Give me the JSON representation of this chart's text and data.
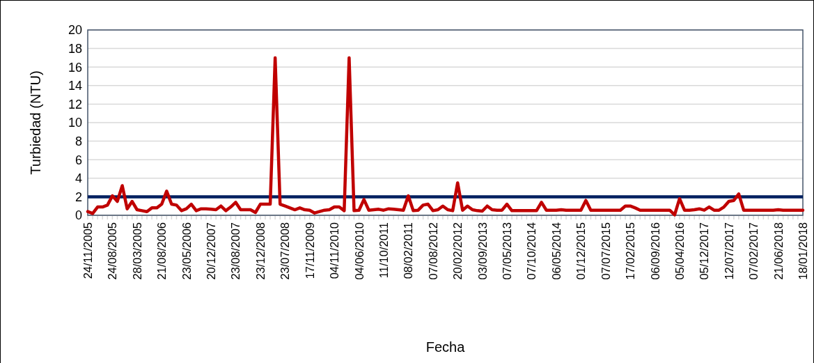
{
  "chart_data": {
    "type": "line",
    "xlabel": "Fecha",
    "ylabel": "Turbiedad (NTU)",
    "categories": [
      "24/11/2005",
      null,
      null,
      null,
      null,
      "24/08/2005",
      null,
      null,
      null,
      null,
      "28/03/2005",
      null,
      null,
      null,
      null,
      "21/08/2006",
      null,
      null,
      null,
      null,
      "23/05/2006",
      null,
      null,
      null,
      null,
      "20/12/2007",
      null,
      null,
      null,
      null,
      "23/08/2007",
      null,
      null,
      null,
      null,
      "23/12/2008",
      null,
      null,
      null,
      null,
      "23/07/2008",
      null,
      null,
      null,
      null,
      "17/11/2009",
      null,
      null,
      null,
      null,
      "04/11/2010",
      null,
      null,
      null,
      null,
      "04/06/2010",
      null,
      null,
      null,
      null,
      "11/10/2011",
      null,
      null,
      null,
      null,
      "08/02/2011",
      null,
      null,
      null,
      null,
      "07/08/2012",
      null,
      null,
      null,
      null,
      "20/02/2012",
      null,
      null,
      null,
      null,
      "03/09/2013",
      null,
      null,
      null,
      null,
      "07/05/2013",
      null,
      null,
      null,
      null,
      "07/10/2014",
      null,
      null,
      null,
      null,
      "06/05/2014",
      null,
      null,
      null,
      null,
      "01/12/2015",
      null,
      null,
      null,
      null,
      "07/07/2015",
      null,
      null,
      null,
      null,
      "17/02/2015",
      null,
      null,
      null,
      null,
      "06/09/2016",
      null,
      null,
      null,
      null,
      "05/04/2016",
      null,
      null,
      null,
      null,
      "05/12/2017",
      null,
      null,
      null,
      null,
      "12/07/2017",
      null,
      null,
      null,
      null,
      "07/02/2017",
      null,
      null,
      null,
      null,
      "21/06/2018",
      null,
      null,
      null,
      null,
      "18/01/2018"
    ],
    "series": [
      {
        "color": "#c00000",
        "values": [
          0.4,
          0.2,
          0.9,
          0.9,
          1.1,
          2.1,
          1.5,
          3.2,
          0.7,
          1.5,
          0.6,
          0.5,
          0.4,
          0.8,
          0.8,
          1.2,
          2.6,
          1.2,
          1.1,
          0.5,
          0.7,
          1.2,
          0.5,
          0.7,
          0.7,
          0.65,
          0.6,
          1.0,
          0.5,
          0.9,
          1.4,
          0.6,
          0.6,
          0.6,
          0.3,
          1.2,
          1.2,
          1.2,
          17,
          1.2,
          1.0,
          0.8,
          0.6,
          0.8,
          0.6,
          0.55,
          0.25,
          0.4,
          0.55,
          0.6,
          0.9,
          0.9,
          0.5,
          17,
          0.5,
          0.55,
          1.7,
          0.55,
          0.6,
          0.65,
          0.55,
          0.7,
          0.65,
          0.6,
          0.55,
          2.1,
          0.5,
          0.55,
          1.1,
          1.2,
          0.5,
          0.6,
          1.0,
          0.6,
          0.5,
          3.5,
          0.55,
          1.0,
          0.6,
          0.5,
          0.45,
          1.0,
          0.6,
          0.55,
          0.55,
          1.2,
          0.5,
          0.5,
          0.5,
          0.5,
          0.5,
          0.5,
          1.4,
          0.55,
          0.55,
          0.55,
          0.6,
          0.55,
          0.55,
          0.55,
          0.55,
          1.6,
          0.55,
          0.55,
          0.55,
          0.55,
          0.55,
          0.55,
          0.55,
          1.0,
          1.0,
          0.8,
          0.55,
          0.55,
          0.55,
          0.55,
          0.55,
          0.55,
          0.55,
          0.05,
          1.8,
          0.55,
          0.55,
          0.6,
          0.7,
          0.55,
          0.9,
          0.55,
          0.55,
          0.9,
          1.5,
          1.6,
          2.3,
          0.55,
          0.55,
          0.55,
          0.55,
          0.55,
          0.55,
          0.55,
          0.6,
          0.55,
          0.55,
          0.55,
          0.55,
          0.55
        ]
      }
    ],
    "ylim": [
      0,
      20
    ],
    "yticks": [
      0,
      2,
      4,
      6,
      8,
      10,
      12,
      14,
      16,
      18,
      20
    ],
    "grid": "y",
    "marker": "none",
    "line_style": "solid",
    "ref_lines": [
      {
        "axis": "y",
        "value": 2,
        "color": "#002060"
      }
    ]
  }
}
